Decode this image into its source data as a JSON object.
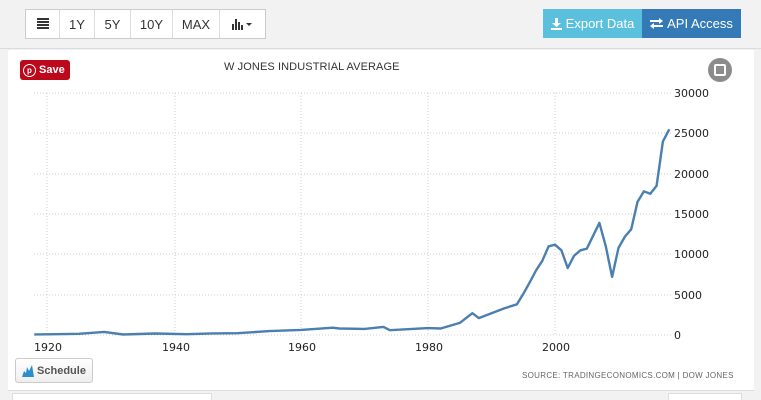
{
  "toolbar": {
    "calendar_icon": "calendar-icon",
    "ranges": [
      "1Y",
      "5Y",
      "10Y",
      "MAX"
    ],
    "chart_type_icon": "bar-chart-icon",
    "export_label": "Export Data",
    "api_label": "API Access",
    "export_color": "#5bc0de",
    "api_color": "#337ab7"
  },
  "chart": {
    "pin_label": "Save",
    "title": "W JONES INDUSTRIAL AVERAGE",
    "schedule_label": "Schedule",
    "source": "SOURCE: TRADINGECONOMICS.COM | DOW JONES",
    "line_color": "#4a7fb0"
  },
  "chart_data": {
    "type": "line",
    "title": "DOW JONES INDUSTRIAL AVERAGE",
    "xlabel": "",
    "ylabel": "",
    "x_ticks": [
      "1920",
      "1940",
      "1960",
      "1980",
      "2000"
    ],
    "y_ticks": [
      "30000",
      "25000",
      "20000",
      "15000",
      "10000",
      "5000",
      "0"
    ],
    "ylim": [
      0,
      30000
    ],
    "xlim": [
      1918,
      2018
    ],
    "grid": true,
    "legend": "none",
    "series": [
      {
        "name": "Dow Jones Industrial Average",
        "x": [
          1918,
          1920,
          1925,
          1929,
          1932,
          1937,
          1942,
          1946,
          1950,
          1955,
          1960,
          1965,
          1966,
          1970,
          1973,
          1974,
          1980,
          1982,
          1985,
          1987,
          1988,
          1990,
          1992,
          1994,
          1995,
          1996,
          1997,
          1998,
          1999,
          2000,
          2001,
          2002,
          2003,
          2004,
          2005,
          2006,
          2007,
          2008,
          2009,
          2010,
          2011,
          2012,
          2013,
          2014,
          2015,
          2016,
          2017,
          2018
        ],
        "values": [
          80,
          90,
          150,
          380,
          60,
          180,
          100,
          200,
          220,
          480,
          630,
          900,
          800,
          750,
          1000,
          600,
          850,
          800,
          1500,
          2700,
          2100,
          2700,
          3300,
          3800,
          5100,
          6500,
          8000,
          9200,
          11000,
          11200,
          10500,
          8300,
          9800,
          10500,
          10700,
          12300,
          13900,
          11000,
          7200,
          10800,
          12200,
          13100,
          16500,
          17800,
          17500,
          18500,
          24000,
          25500
        ]
      }
    ]
  }
}
